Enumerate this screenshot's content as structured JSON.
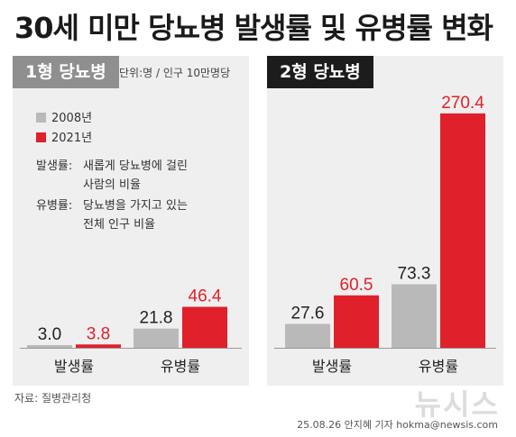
{
  "title": "30세 미만 당뇨병 발생률 및 유병률 변화",
  "unit_note": "단위:명 / 인구 10만명당",
  "colors": {
    "y2008": "#b9b9b9",
    "y2021": "#e0202a",
    "text_dark": "#222222"
  },
  "legend": [
    {
      "label": "2008년",
      "color": "#b9b9b9"
    },
    {
      "label": "2021년",
      "color": "#e0202a"
    }
  ],
  "definitions": [
    {
      "term": "발생률:",
      "desc_line1": "새롭게 당뇨병에 걸린",
      "desc_line2": "사람의 비율"
    },
    {
      "term": "유병률:",
      "desc_line1": "당뇨병을 가지고 있는",
      "desc_line2": "전체 인구 비율"
    }
  ],
  "chart_data": [
    {
      "type": "bar",
      "title": "1형 당뇨병",
      "categories": [
        "발생률",
        "유병률"
      ],
      "series": [
        {
          "name": "2008년",
          "values": [
            3.0,
            21.8
          ]
        },
        {
          "name": "2021년",
          "values": [
            3.8,
            46.4
          ]
        }
      ]
    },
    {
      "type": "bar",
      "title": "2형 당뇨병",
      "categories": [
        "발생률",
        "유병률"
      ],
      "series": [
        {
          "name": "2008년",
          "values": [
            27.6,
            73.3
          ]
        },
        {
          "name": "2021년",
          "values": [
            60.5,
            270.4
          ]
        }
      ]
    }
  ],
  "source": "자료: 질병관리청",
  "logo_text": "뉴시스",
  "credit": "25.08.26 안지혜 기자 hokma@newsis.com"
}
